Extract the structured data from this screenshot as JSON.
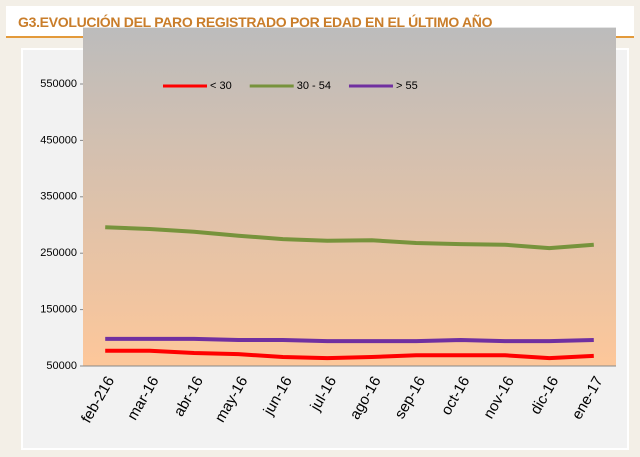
{
  "chart_data": {
    "type": "line",
    "title": "G3.EVOLUCIÓN DEL PARO REGISTRADO POR EDAD EN EL ÚLTIMO AÑO",
    "categories": [
      "feb-216",
      "mar-16",
      "abr-16",
      "may-16",
      "jun-16",
      "jul-16",
      "ago-16",
      "sep-16",
      "oct-16",
      "nov-16",
      "dic-16",
      "ene-17"
    ],
    "series": [
      {
        "name": "< 30",
        "color": "#ff0000",
        "values": [
          77000,
          77000,
          73000,
          71000,
          66000,
          64000,
          66000,
          69000,
          69000,
          69000,
          64000,
          68000
        ]
      },
      {
        "name": "30 - 54",
        "color": "#77933c",
        "values": [
          296000,
          293000,
          288000,
          281000,
          275000,
          272000,
          273000,
          268000,
          266000,
          265000,
          259000,
          265000
        ]
      },
      {
        "name": "> 55",
        "color": "#7030a0",
        "values": [
          98000,
          98000,
          98000,
          96000,
          96000,
          94000,
          94000,
          94000,
          96000,
          94000,
          94000,
          96000
        ]
      }
    ],
    "ylim": [
      50000,
      650000
    ],
    "yticks": [
      50000,
      150000,
      250000,
      350000,
      450000,
      550000
    ],
    "legend": "top"
  }
}
